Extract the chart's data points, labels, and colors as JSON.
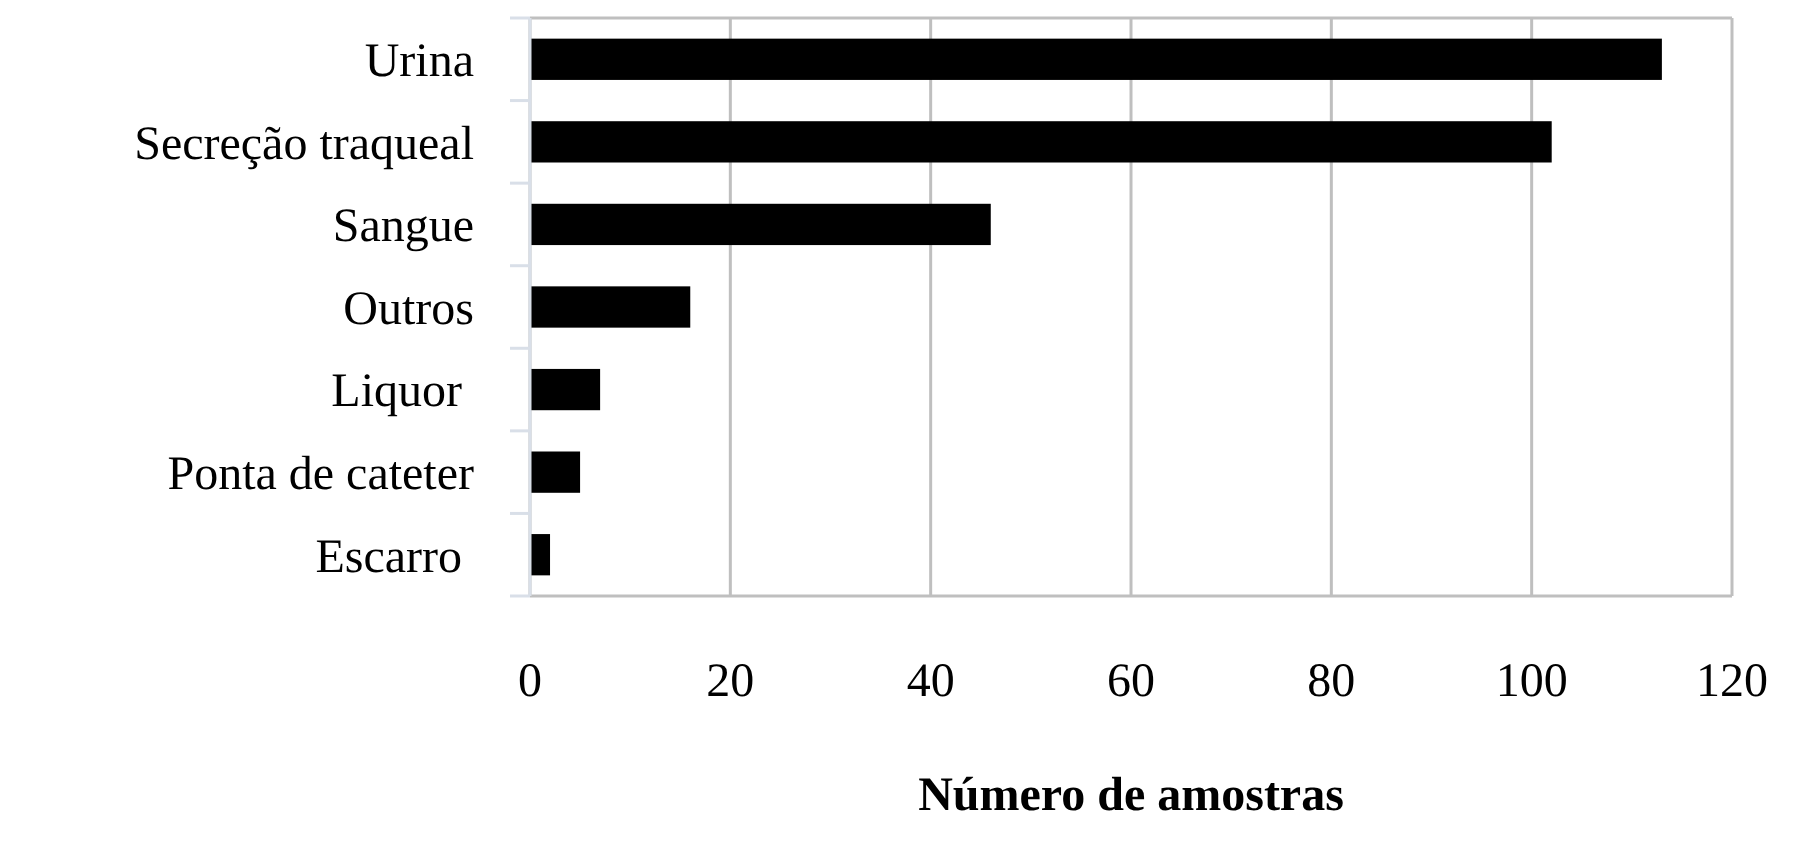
{
  "chart_data": {
    "type": "bar",
    "orientation": "horizontal",
    "xlabel": "Número de amostras",
    "categories": [
      "Urina",
      "Secreção traqueal",
      "Sangue",
      "Outros",
      "Liquor ",
      "Ponta de cateter",
      "Escarro "
    ],
    "values": [
      113,
      102,
      46,
      16,
      7,
      5,
      2
    ],
    "color": "#000000",
    "xlim": [
      0,
      120
    ],
    "xticks": [
      0,
      20,
      40,
      60,
      80,
      100,
      120
    ],
    "grid": "x"
  }
}
